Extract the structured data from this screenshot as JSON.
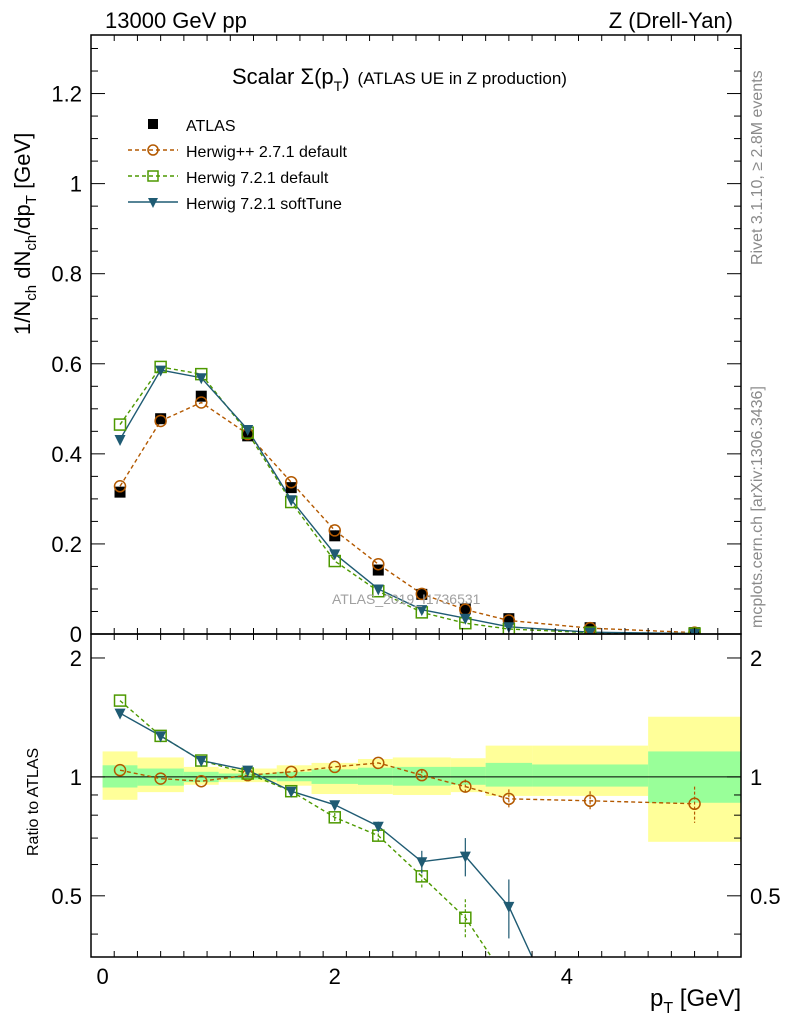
{
  "header": {
    "left": "13000 GeV pp",
    "right": "Z (Drell-Yan)"
  },
  "side_labels": {
    "rivet": "Rivet 3.1.10, ≥ 2.8M events",
    "mcplots": "mcplots.cern.ch [arXiv:1306.3436]"
  },
  "watermark": "ATLAS_2019_I1736531",
  "chart_data": [
    {
      "type": "scatter",
      "panel": "main",
      "title_main": "Scalar Σ(p",
      "title_sub": "T",
      "title_close": ")",
      "title_note": "(ATLAS UE in Z production)",
      "ylabel": "1/N",
      "ylabel_parts": [
        "1/N",
        "ch",
        " dN",
        "ch",
        "/dp",
        "T",
        " [GeV]"
      ],
      "xlim": [
        -0.1,
        5.5
      ],
      "ylim": [
        0,
        1.33
      ],
      "y_ticks": [
        "0",
        "0.2",
        "0.4",
        "0.6",
        "0.8",
        "1",
        "1.2"
      ],
      "legend_position": "top-left",
      "series": [
        {
          "name": "ATLAS",
          "color": "#000000",
          "marker": "filled-square",
          "line": "none",
          "x": [
            0.15,
            0.5,
            0.85,
            1.25,
            1.625,
            2.0,
            2.375,
            2.75,
            3.125,
            3.5,
            4.2,
            5.1
          ],
          "y": [
            0.315,
            0.478,
            0.528,
            0.44,
            0.325,
            0.218,
            0.142,
            0.088,
            0.056,
            0.034,
            0.014,
            0.003
          ]
        },
        {
          "name": "Herwig++ 2.7.1 default",
          "color": "#b35900",
          "marker": "open-circle",
          "line": "dashed",
          "x": [
            0.15,
            0.5,
            0.85,
            1.25,
            1.625,
            2.0,
            2.375,
            2.75,
            3.125,
            3.5,
            4.2,
            5.1
          ],
          "y": [
            0.328,
            0.473,
            0.514,
            0.444,
            0.337,
            0.23,
            0.155,
            0.089,
            0.054,
            0.03,
            0.013,
            0.003
          ]
        },
        {
          "name": "Herwig 7.2.1 default",
          "color": "#4d9900",
          "marker": "open-square",
          "line": "dashed",
          "x": [
            0.15,
            0.5,
            0.85,
            1.25,
            1.625,
            2.0,
            2.375,
            2.75,
            3.125,
            3.5,
            4.2,
            5.1
          ],
          "y": [
            0.465,
            0.593,
            0.577,
            0.447,
            0.293,
            0.162,
            0.095,
            0.048,
            0.024,
            0.011,
            0.003,
            0.001
          ]
        },
        {
          "name": "Herwig 7.2.1 softTune",
          "color": "#1f5b73",
          "marker": "filled-triangle-down",
          "line": "solid",
          "x": [
            0.15,
            0.5,
            0.85,
            1.25,
            1.625,
            2.0,
            2.375,
            2.75,
            3.125,
            3.5,
            4.2,
            5.1
          ],
          "y": [
            0.432,
            0.586,
            0.569,
            0.454,
            0.298,
            0.178,
            0.1,
            0.054,
            0.035,
            0.016,
            0.004,
            0.001
          ]
        }
      ]
    },
    {
      "type": "line",
      "panel": "ratio",
      "ylabel": "Ratio to ATLAS",
      "xlabel_main": "p",
      "xlabel_sub": "T",
      "xlabel_unit": " [GeV]",
      "xlim": [
        -0.1,
        5.5
      ],
      "ylim": [
        0.35,
        2.3
      ],
      "x_ticks": [
        "0",
        "2",
        "4"
      ],
      "y_ticks": [
        "0.5",
        "1",
        "2"
      ],
      "bands": {
        "bins": [
          [
            0.0,
            0.3
          ],
          [
            0.3,
            0.7
          ],
          [
            0.7,
            1.0
          ],
          [
            1.0,
            1.5
          ],
          [
            1.5,
            1.8
          ],
          [
            1.8,
            2.2
          ],
          [
            2.2,
            2.5
          ],
          [
            2.5,
            3.0
          ],
          [
            3.0,
            3.3
          ],
          [
            3.3,
            3.7
          ],
          [
            3.7,
            4.7
          ],
          [
            4.7,
            5.5
          ]
        ],
        "inner": [
          [
            0.94,
            1.07
          ],
          [
            0.95,
            1.05
          ],
          [
            0.97,
            1.03
          ],
          [
            0.985,
            1.02
          ],
          [
            0.975,
            1.03
          ],
          [
            0.96,
            1.045
          ],
          [
            0.955,
            1.055
          ],
          [
            0.95,
            1.06
          ],
          [
            0.955,
            1.06
          ],
          [
            0.945,
            1.085
          ],
          [
            0.945,
            1.075
          ],
          [
            0.86,
            1.16
          ]
        ],
        "outer": [
          [
            0.875,
            1.16
          ],
          [
            0.915,
            1.12
          ],
          [
            0.955,
            1.06
          ],
          [
            0.97,
            1.05
          ],
          [
            0.95,
            1.07
          ],
          [
            0.905,
            1.085
          ],
          [
            0.905,
            1.11
          ],
          [
            0.9,
            1.12
          ],
          [
            0.915,
            1.115
          ],
          [
            0.895,
            1.2
          ],
          [
            0.895,
            1.2
          ],
          [
            0.685,
            1.42
          ]
        ],
        "inner_color": "#99ff99",
        "outer_color": "#ffff99"
      },
      "series": [
        {
          "name": "Herwig++ 2.7.1 default",
          "color": "#b35900",
          "marker": "open-circle",
          "line": "dashed",
          "x": [
            0.15,
            0.5,
            0.85,
            1.25,
            1.625,
            2.0,
            2.375,
            2.75,
            3.125,
            3.5,
            4.2,
            5.1
          ],
          "y": [
            1.04,
            0.99,
            0.975,
            1.01,
            1.03,
            1.06,
            1.085,
            1.01,
            0.945,
            0.88,
            0.87,
            0.855
          ],
          "err": [
            0.0,
            0.0,
            0.0,
            0.0,
            0.0,
            0.0,
            0.0,
            0.03,
            0.04,
            0.05,
            0.05,
            0.09
          ]
        },
        {
          "name": "Herwig 7.2.1 default",
          "color": "#4d9900",
          "marker": "open-square",
          "line": "dashed",
          "x": [
            0.15,
            0.5,
            0.85,
            1.25,
            1.625,
            2.0,
            2.375,
            2.75,
            3.125,
            3.35
          ],
          "y": [
            1.56,
            1.27,
            1.1,
            1.02,
            0.92,
            0.79,
            0.71,
            0.56,
            0.44,
            0.35
          ],
          "err": [
            0.0,
            0.0,
            0.0,
            0.0,
            0.0,
            0.02,
            0.03,
            0.04,
            0.05,
            0.0
          ]
        },
        {
          "name": "Herwig 7.2.1 softTune",
          "color": "#1f5b73",
          "marker": "filled-triangle-down",
          "line": "solid",
          "x": [
            0.15,
            0.5,
            0.85,
            1.25,
            1.625,
            2.0,
            2.375,
            2.75,
            3.125,
            3.5,
            3.7
          ],
          "y": [
            1.45,
            1.27,
            1.1,
            1.04,
            0.92,
            0.85,
            0.75,
            0.61,
            0.63,
            0.47,
            0.35
          ],
          "err": [
            0.0,
            0.0,
            0.0,
            0.0,
            0.0,
            0.0,
            0.02,
            0.04,
            0.07,
            0.08,
            0.0
          ]
        }
      ]
    }
  ]
}
